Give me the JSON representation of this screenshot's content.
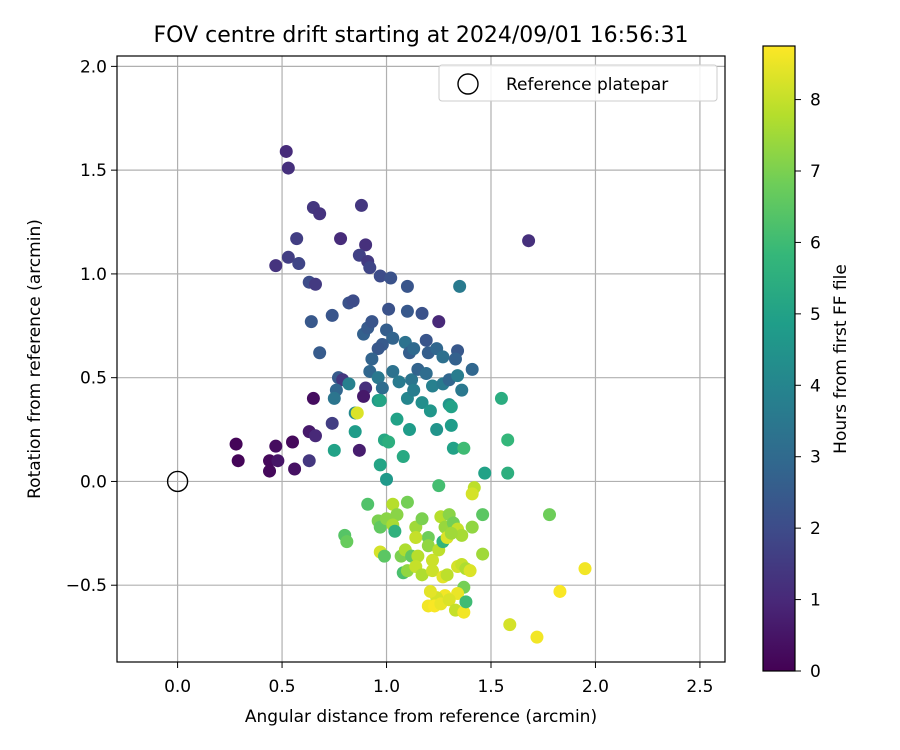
{
  "chart_data": {
    "type": "scatter",
    "title": "FOV centre drift starting at 2024/09/01 16:56:31",
    "xlabel": "Angular distance from reference (arcmin)",
    "ylabel": "Rotation from reference (arcmin)",
    "xlim": [
      -0.29,
      2.62
    ],
    "ylim": [
      -0.87,
      2.05
    ],
    "xticks": [
      0.0,
      0.5,
      1.0,
      1.5,
      2.0,
      2.5
    ],
    "xtick_labels": [
      "0.0",
      "0.5",
      "1.0",
      "1.5",
      "2.0",
      "2.5"
    ],
    "yticks": [
      -0.5,
      0.0,
      0.5,
      1.0,
      1.5,
      2.0
    ],
    "ytick_labels": [
      "−0.5",
      "0.0",
      "0.5",
      "1.0",
      "1.5",
      "2.0"
    ],
    "grid": true,
    "legend": {
      "placement": "top-right",
      "entries": [
        {
          "label": "Reference platepar",
          "marker": "hollow-circle"
        }
      ]
    },
    "reference_point": {
      "x": 0.0,
      "y": 0.0
    },
    "colorbar": {
      "label": "Hours from first FF file",
      "range": [
        0,
        8.75
      ],
      "ticks": [
        0,
        1,
        2,
        3,
        4,
        5,
        6,
        7,
        8
      ],
      "tick_labels": [
        "0",
        "1",
        "2",
        "3",
        "4",
        "5",
        "6",
        "7",
        "8"
      ],
      "colormap": "viridis"
    },
    "series": [
      {
        "points": [
          {
            "x": 0.28,
            "y": 0.18,
            "t": 0.1
          },
          {
            "x": 0.29,
            "y": 0.1,
            "t": 0.1
          },
          {
            "x": 0.44,
            "y": 0.1,
            "t": 0.2
          },
          {
            "x": 0.44,
            "y": 0.05,
            "t": 0.2
          },
          {
            "x": 0.47,
            "y": 0.17,
            "t": 0.3
          },
          {
            "x": 0.48,
            "y": 0.1,
            "t": 0.5
          },
          {
            "x": 0.55,
            "y": 0.19,
            "t": 0.2
          },
          {
            "x": 0.56,
            "y": 0.06,
            "t": 0.4
          },
          {
            "x": 0.63,
            "y": 0.24,
            "t": 0.6
          },
          {
            "x": 0.63,
            "y": 0.1,
            "t": 1.4
          },
          {
            "x": 0.65,
            "y": 0.4,
            "t": 0.3
          },
          {
            "x": 0.66,
            "y": 0.22,
            "t": 1.0
          },
          {
            "x": 0.52,
            "y": 1.59,
            "t": 1.1
          },
          {
            "x": 0.53,
            "y": 1.51,
            "t": 1.2
          },
          {
            "x": 0.65,
            "y": 1.32,
            "t": 1.4
          },
          {
            "x": 0.68,
            "y": 1.29,
            "t": 1.3
          },
          {
            "x": 0.57,
            "y": 1.17,
            "t": 1.6
          },
          {
            "x": 0.88,
            "y": 1.33,
            "t": 1.4
          },
          {
            "x": 0.78,
            "y": 1.17,
            "t": 1.1
          },
          {
            "x": 0.9,
            "y": 1.14,
            "t": 1.2
          },
          {
            "x": 0.47,
            "y": 1.04,
            "t": 1.3
          },
          {
            "x": 0.53,
            "y": 1.08,
            "t": 1.6
          },
          {
            "x": 0.58,
            "y": 1.05,
            "t": 1.8
          },
          {
            "x": 0.63,
            "y": 0.96,
            "t": 2.0
          },
          {
            "x": 0.66,
            "y": 0.95,
            "t": 1.5
          },
          {
            "x": 0.87,
            "y": 1.09,
            "t": 1.7
          },
          {
            "x": 0.91,
            "y": 1.06,
            "t": 1.5
          },
          {
            "x": 0.92,
            "y": 1.03,
            "t": 1.8
          },
          {
            "x": 0.97,
            "y": 0.99,
            "t": 2.0
          },
          {
            "x": 1.02,
            "y": 0.98,
            "t": 2.2
          },
          {
            "x": 1.68,
            "y": 1.16,
            "t": 1.2
          },
          {
            "x": 0.82,
            "y": 0.86,
            "t": 2.2
          },
          {
            "x": 0.84,
            "y": 0.87,
            "t": 2.0
          },
          {
            "x": 0.74,
            "y": 0.8,
            "t": 2.3
          },
          {
            "x": 0.64,
            "y": 0.77,
            "t": 2.4
          },
          {
            "x": 0.68,
            "y": 0.62,
            "t": 2.5
          },
          {
            "x": 0.89,
            "y": 0.71,
            "t": 2.7
          },
          {
            "x": 0.91,
            "y": 0.74,
            "t": 2.5
          },
          {
            "x": 0.93,
            "y": 0.77,
            "t": 2.3
          },
          {
            "x": 1.01,
            "y": 0.83,
            "t": 2.2
          },
          {
            "x": 1.1,
            "y": 0.94,
            "t": 2.3
          },
          {
            "x": 1.1,
            "y": 0.82,
            "t": 2.4
          },
          {
            "x": 1.17,
            "y": 0.81,
            "t": 2.2
          },
          {
            "x": 1.25,
            "y": 0.77,
            "t": 1.0
          },
          {
            "x": 1.35,
            "y": 0.94,
            "t": 3.6
          },
          {
            "x": 1.0,
            "y": 0.73,
            "t": 2.6
          },
          {
            "x": 1.03,
            "y": 0.69,
            "t": 2.8
          },
          {
            "x": 0.98,
            "y": 0.66,
            "t": 2.5
          },
          {
            "x": 0.96,
            "y": 0.64,
            "t": 2.4
          },
          {
            "x": 0.93,
            "y": 0.59,
            "t": 2.8
          },
          {
            "x": 1.09,
            "y": 0.67,
            "t": 3.3
          },
          {
            "x": 1.11,
            "y": 0.62,
            "t": 2.6
          },
          {
            "x": 1.13,
            "y": 0.64,
            "t": 3.0
          },
          {
            "x": 1.19,
            "y": 0.68,
            "t": 2.3
          },
          {
            "x": 1.2,
            "y": 0.62,
            "t": 2.6
          },
          {
            "x": 1.24,
            "y": 0.64,
            "t": 2.9
          },
          {
            "x": 1.27,
            "y": 0.6,
            "t": 3.2
          },
          {
            "x": 1.34,
            "y": 0.63,
            "t": 2.4
          },
          {
            "x": 1.33,
            "y": 0.59,
            "t": 2.7
          },
          {
            "x": 0.77,
            "y": 0.5,
            "t": 2.5
          },
          {
            "x": 0.79,
            "y": 0.49,
            "t": 1.4
          },
          {
            "x": 0.82,
            "y": 0.47,
            "t": 3.8
          },
          {
            "x": 0.76,
            "y": 0.44,
            "t": 2.9
          },
          {
            "x": 0.75,
            "y": 0.4,
            "t": 3.4
          },
          {
            "x": 0.9,
            "y": 0.45,
            "t": 1.2
          },
          {
            "x": 0.89,
            "y": 0.41,
            "t": 0.6
          },
          {
            "x": 0.92,
            "y": 0.53,
            "t": 2.9
          },
          {
            "x": 0.96,
            "y": 0.5,
            "t": 3.5
          },
          {
            "x": 0.98,
            "y": 0.45,
            "t": 3.1
          },
          {
            "x": 1.03,
            "y": 0.53,
            "t": 3.3
          },
          {
            "x": 1.06,
            "y": 0.48,
            "t": 3.6
          },
          {
            "x": 1.12,
            "y": 0.49,
            "t": 3.4
          },
          {
            "x": 1.15,
            "y": 0.54,
            "t": 2.8
          },
          {
            "x": 1.19,
            "y": 0.52,
            "t": 3.1
          },
          {
            "x": 1.22,
            "y": 0.46,
            "t": 3.8
          },
          {
            "x": 1.27,
            "y": 0.47,
            "t": 3.6
          },
          {
            "x": 1.3,
            "y": 0.49,
            "t": 2.9
          },
          {
            "x": 1.34,
            "y": 0.51,
            "t": 3.7
          },
          {
            "x": 1.36,
            "y": 0.44,
            "t": 3.5
          },
          {
            "x": 1.41,
            "y": 0.54,
            "t": 2.9
          },
          {
            "x": 1.1,
            "y": 0.4,
            "t": 4.0
          },
          {
            "x": 1.13,
            "y": 0.44,
            "t": 3.7
          },
          {
            "x": 1.17,
            "y": 0.38,
            "t": 4.3
          },
          {
            "x": 1.21,
            "y": 0.34,
            "t": 4.6
          },
          {
            "x": 1.3,
            "y": 0.37,
            "t": 4.5
          },
          {
            "x": 1.31,
            "y": 0.36,
            "t": 5.0
          },
          {
            "x": 1.31,
            "y": 0.27,
            "t": 4.8
          },
          {
            "x": 1.24,
            "y": 0.25,
            "t": 4.5
          },
          {
            "x": 0.74,
            "y": 0.28,
            "t": 1.6
          },
          {
            "x": 0.85,
            "y": 0.33,
            "t": 4.1
          },
          {
            "x": 0.85,
            "y": 0.24,
            "t": 4.8
          },
          {
            "x": 0.87,
            "y": 0.15,
            "t": 0.7
          },
          {
            "x": 0.75,
            "y": 0.15,
            "t": 5.0
          },
          {
            "x": 0.96,
            "y": 0.39,
            "t": 4.7
          },
          {
            "x": 0.97,
            "y": 0.39,
            "t": 5.1
          },
          {
            "x": 0.99,
            "y": 0.2,
            "t": 5.2
          },
          {
            "x": 1.01,
            "y": 0.19,
            "t": 5.5
          },
          {
            "x": 1.05,
            "y": 0.3,
            "t": 5.0
          },
          {
            "x": 1.08,
            "y": 0.12,
            "t": 5.3
          },
          {
            "x": 1.11,
            "y": 0.25,
            "t": 4.8
          },
          {
            "x": 0.97,
            "y": 0.08,
            "t": 5.1
          },
          {
            "x": 1.0,
            "y": 0.01,
            "t": 4.7
          },
          {
            "x": 1.32,
            "y": 0.16,
            "t": 5.0
          },
          {
            "x": 1.37,
            "y": 0.16,
            "t": 6.0
          },
          {
            "x": 1.55,
            "y": 0.4,
            "t": 5.4
          },
          {
            "x": 1.58,
            "y": 0.2,
            "t": 5.8
          },
          {
            "x": 1.47,
            "y": 0.04,
            "t": 5.0
          },
          {
            "x": 1.58,
            "y": 0.04,
            "t": 5.5
          },
          {
            "x": 0.86,
            "y": 0.33,
            "t": 8.3
          },
          {
            "x": 1.25,
            "y": -0.02,
            "t": 6.1
          },
          {
            "x": 1.42,
            "y": -0.03,
            "t": 7.9
          },
          {
            "x": 1.41,
            "y": -0.06,
            "t": 8.2
          },
          {
            "x": 1.46,
            "y": -0.16,
            "t": 6.5
          },
          {
            "x": 1.78,
            "y": -0.16,
            "t": 6.8
          },
          {
            "x": 0.91,
            "y": -0.11,
            "t": 6.3
          },
          {
            "x": 0.96,
            "y": -0.19,
            "t": 7.0
          },
          {
            "x": 0.97,
            "y": -0.22,
            "t": 6.6
          },
          {
            "x": 1.0,
            "y": -0.18,
            "t": 7.2
          },
          {
            "x": 1.03,
            "y": -0.11,
            "t": 7.8
          },
          {
            "x": 1.05,
            "y": -0.16,
            "t": 7.2
          },
          {
            "x": 1.03,
            "y": -0.21,
            "t": 7.6
          },
          {
            "x": 1.04,
            "y": -0.24,
            "t": 5.6
          },
          {
            "x": 1.1,
            "y": -0.1,
            "t": 6.9
          },
          {
            "x": 1.14,
            "y": -0.22,
            "t": 7.5
          },
          {
            "x": 1.17,
            "y": -0.18,
            "t": 7.0
          },
          {
            "x": 1.2,
            "y": -0.27,
            "t": 6.8
          },
          {
            "x": 1.26,
            "y": -0.17,
            "t": 7.8
          },
          {
            "x": 1.28,
            "y": -0.22,
            "t": 7.4
          },
          {
            "x": 1.3,
            "y": -0.16,
            "t": 7.2
          },
          {
            "x": 1.32,
            "y": -0.2,
            "t": 6.9
          },
          {
            "x": 1.34,
            "y": -0.23,
            "t": 8.0
          },
          {
            "x": 1.36,
            "y": -0.26,
            "t": 7.6
          },
          {
            "x": 1.41,
            "y": -0.22,
            "t": 7.3
          },
          {
            "x": 1.46,
            "y": -0.35,
            "t": 7.5
          },
          {
            "x": 0.8,
            "y": -0.26,
            "t": 6.4
          },
          {
            "x": 0.81,
            "y": -0.29,
            "t": 6.7
          },
          {
            "x": 0.97,
            "y": -0.34,
            "t": 8.2
          },
          {
            "x": 0.99,
            "y": -0.36,
            "t": 6.5
          },
          {
            "x": 1.07,
            "y": -0.36,
            "t": 7.0
          },
          {
            "x": 1.09,
            "y": -0.33,
            "t": 7.7
          },
          {
            "x": 1.12,
            "y": -0.36,
            "t": 6.6
          },
          {
            "x": 1.14,
            "y": -0.27,
            "t": 8.0
          },
          {
            "x": 1.15,
            "y": -0.36,
            "t": 7.8
          },
          {
            "x": 1.2,
            "y": -0.31,
            "t": 7.3
          },
          {
            "x": 1.22,
            "y": -0.38,
            "t": 8.1
          },
          {
            "x": 1.25,
            "y": -0.33,
            "t": 7.9
          },
          {
            "x": 1.27,
            "y": -0.29,
            "t": 5.7
          },
          {
            "x": 1.29,
            "y": -0.27,
            "t": 8.3
          },
          {
            "x": 1.31,
            "y": -0.25,
            "t": 7.5
          },
          {
            "x": 1.08,
            "y": -0.44,
            "t": 6.2
          },
          {
            "x": 1.1,
            "y": -0.43,
            "t": 7.3
          },
          {
            "x": 1.14,
            "y": -0.41,
            "t": 8.0
          },
          {
            "x": 1.17,
            "y": -0.45,
            "t": 7.7
          },
          {
            "x": 1.22,
            "y": -0.43,
            "t": 8.1
          },
          {
            "x": 1.27,
            "y": -0.46,
            "t": 8.4
          },
          {
            "x": 1.29,
            "y": -0.45,
            "t": 7.9
          },
          {
            "x": 1.34,
            "y": -0.41,
            "t": 8.2
          },
          {
            "x": 1.36,
            "y": -0.4,
            "t": 8.0
          },
          {
            "x": 1.38,
            "y": -0.42,
            "t": 7.7
          },
          {
            "x": 1.4,
            "y": -0.43,
            "t": 8.3
          },
          {
            "x": 1.37,
            "y": -0.51,
            "t": 6.9
          },
          {
            "x": 1.34,
            "y": -0.54,
            "t": 8.5
          },
          {
            "x": 1.28,
            "y": -0.55,
            "t": 8.6
          },
          {
            "x": 1.24,
            "y": -0.56,
            "t": 8.2
          },
          {
            "x": 1.21,
            "y": -0.53,
            "t": 8.4
          },
          {
            "x": 1.2,
            "y": -0.6,
            "t": 8.6
          },
          {
            "x": 1.23,
            "y": -0.6,
            "t": 8.7
          },
          {
            "x": 1.26,
            "y": -0.59,
            "t": 8.5
          },
          {
            "x": 1.3,
            "y": -0.57,
            "t": 8.3
          },
          {
            "x": 1.33,
            "y": -0.62,
            "t": 8.0
          },
          {
            "x": 1.37,
            "y": -0.63,
            "t": 8.6
          },
          {
            "x": 1.38,
            "y": -0.58,
            "t": 6.0
          },
          {
            "x": 1.59,
            "y": -0.69,
            "t": 8.2
          },
          {
            "x": 1.72,
            "y": -0.75,
            "t": 8.6
          },
          {
            "x": 1.83,
            "y": -0.53,
            "t": 8.7
          },
          {
            "x": 1.95,
            "y": -0.42,
            "t": 8.6
          }
        ]
      }
    ]
  }
}
